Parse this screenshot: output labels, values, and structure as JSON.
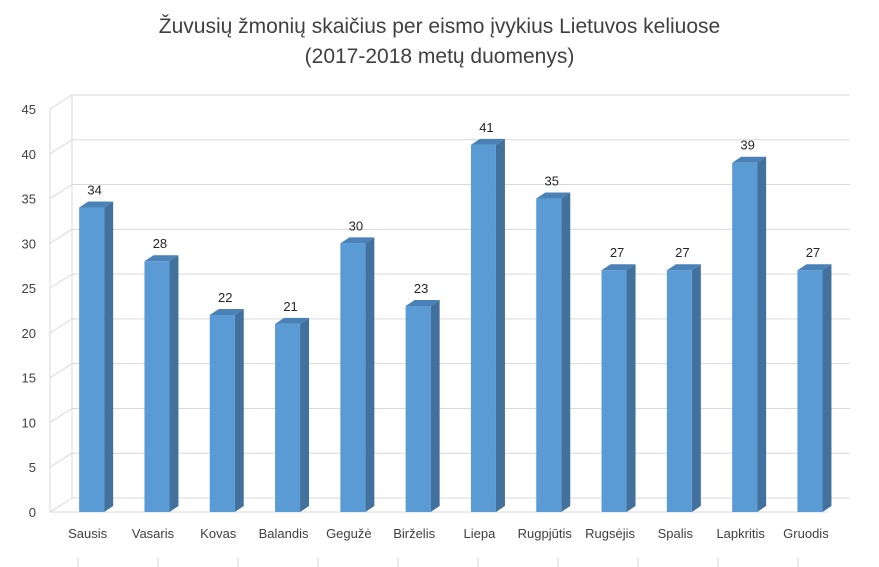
{
  "chart_data": {
    "type": "bar",
    "title": "Žuvusių žmonių skaičius per eismo įvykius Lietuvos keliuose",
    "subtitle": "(2017-2018 metų duomenys)",
    "xlabel": "",
    "ylabel": "",
    "ylim": [
      0,
      45
    ],
    "yticks": [
      "0",
      "5",
      "10",
      "15",
      "20",
      "25",
      "30",
      "35",
      "40",
      "45"
    ],
    "categories": [
      "Sausis",
      "Vasaris",
      "Kovas",
      "Balandis",
      "Gegužė",
      "Birželis",
      "Liepa",
      "Rugpjūtis",
      "Rugsėjis",
      "Spalis",
      "Lapkritis",
      "Gruodis"
    ],
    "values": [
      34,
      28,
      22,
      21,
      30,
      23,
      41,
      35,
      27,
      27,
      39,
      27
    ],
    "style": "3d-column",
    "grid": true,
    "legend": "none",
    "colors": {
      "front": "#5b9bd5",
      "side": "#41719c",
      "top": "#4a82b8"
    }
  }
}
